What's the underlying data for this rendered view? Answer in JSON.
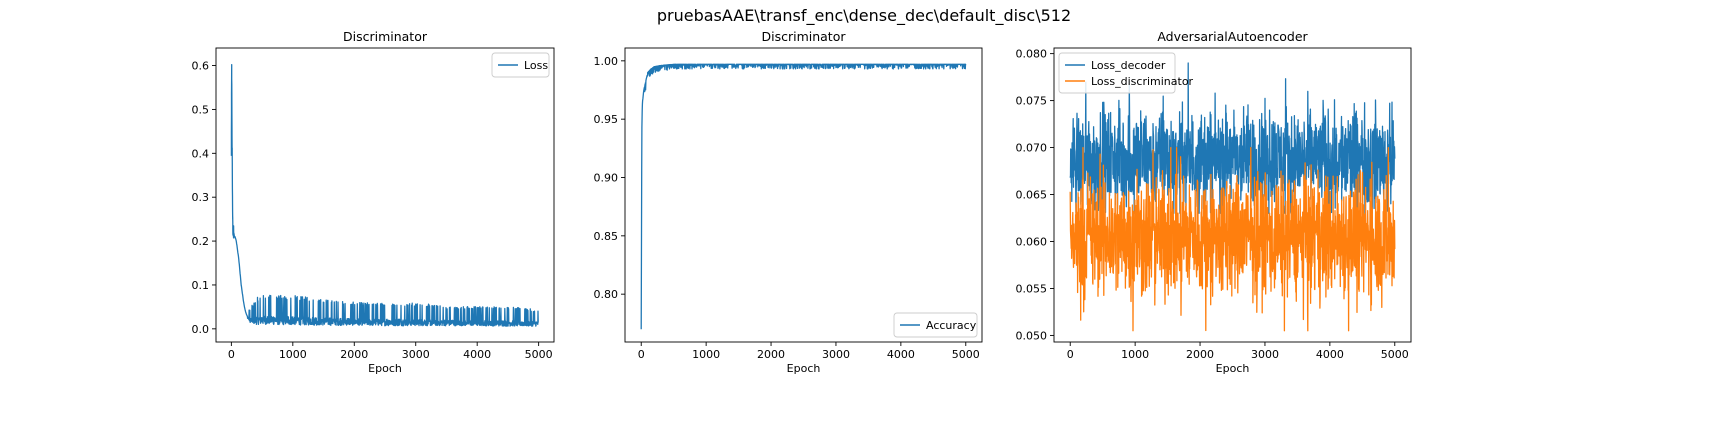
{
  "figure": {
    "suptitle": "pruebasAAE\\transf_enc\\dense_dec\\default_disc\\512"
  },
  "chart_data": [
    {
      "type": "line",
      "title": "Discriminator",
      "xlabel": "Epoch",
      "ylabel": "",
      "xlim": [
        -250,
        5250
      ],
      "ylim": [
        -0.03,
        0.64
      ],
      "xticks": [
        0,
        1000,
        2000,
        3000,
        4000,
        5000
      ],
      "xtick_labels": [
        "0",
        "1000",
        "2000",
        "3000",
        "4000",
        "5000"
      ],
      "yticks": [
        0.0,
        0.1,
        0.2,
        0.3,
        0.4,
        0.5,
        0.6
      ],
      "ytick_labels": [
        "0.0",
        "0.1",
        "0.2",
        "0.3",
        "0.4",
        "0.5",
        "0.6"
      ],
      "legend": "upper right",
      "grid": false,
      "series": [
        {
          "name": "Loss",
          "color": "#1f77b4",
          "x": [
            0,
            5,
            10,
            15,
            20,
            25,
            30,
            40,
            50,
            60,
            80,
            100,
            120,
            140,
            160,
            180,
            200,
            220,
            240,
            260,
            280,
            300,
            350,
            400,
            500,
            600,
            800,
            1000,
            1500,
            2000,
            2500,
            3000,
            3500,
            4000,
            4500,
            5000
          ],
          "values": [
            0.4,
            0.61,
            0.45,
            0.38,
            0.26,
            0.23,
            0.22,
            0.22,
            0.21,
            0.21,
            0.2,
            0.18,
            0.16,
            0.13,
            0.1,
            0.08,
            0.06,
            0.045,
            0.035,
            0.025,
            0.02,
            0.015,
            0.012,
            0.01,
            0.01,
            0.01,
            0.009,
            0.009,
            0.008,
            0.008,
            0.007,
            0.007,
            0.007,
            0.007,
            0.006,
            0.006
          ],
          "noise_envelope": [
            0,
            0,
            0,
            0,
            0,
            0,
            0,
            0,
            0,
            0,
            0,
            0,
            0,
            0,
            0,
            0,
            0,
            0,
            0,
            0.01,
            0.015,
            0.02,
            0.03,
            0.04,
            0.045,
            0.045,
            0.045,
            0.045,
            0.04,
            0.035,
            0.035,
            0.035,
            0.03,
            0.03,
            0.03,
            0.025
          ]
        }
      ]
    },
    {
      "type": "line",
      "title": "Discriminator",
      "xlabel": "Epoch",
      "ylabel": "",
      "xlim": [
        -250,
        5250
      ],
      "ylim": [
        0.759,
        1.011
      ],
      "xticks": [
        0,
        1000,
        2000,
        3000,
        4000,
        5000
      ],
      "xtick_labels": [
        "0",
        "1000",
        "2000",
        "3000",
        "4000",
        "5000"
      ],
      "yticks": [
        0.8,
        0.85,
        0.9,
        0.95,
        1.0
      ],
      "ytick_labels": [
        "0.80",
        "0.85",
        "0.90",
        "0.95",
        "1.00"
      ],
      "legend": "lower right",
      "grid": false,
      "series": [
        {
          "name": "Accuracy",
          "color": "#1f77b4",
          "x": [
            0,
            5,
            10,
            15,
            20,
            30,
            40,
            60,
            80,
            100,
            150,
            200,
            300,
            500,
            1000,
            2000,
            3000,
            4000,
            5000
          ],
          "values": [
            0.77,
            0.88,
            0.94,
            0.96,
            0.965,
            0.97,
            0.975,
            0.98,
            0.985,
            0.99,
            0.993,
            0.995,
            0.996,
            0.997,
            0.997,
            0.997,
            0.997,
            0.997,
            0.997
          ],
          "noise_envelope": [
            0,
            0,
            0.01,
            0.01,
            0.01,
            0.01,
            0.01,
            0.008,
            0.008,
            0.007,
            0.006,
            0.005,
            0.005,
            0.004,
            0.004,
            0.004,
            0.004,
            0.004,
            0.004
          ]
        }
      ]
    },
    {
      "type": "line",
      "title": "AdversarialAutoencoder",
      "xlabel": "Epoch",
      "ylabel": "",
      "xlim": [
        -250,
        5250
      ],
      "ylim": [
        0.0493,
        0.0806
      ],
      "xticks": [
        0,
        1000,
        2000,
        3000,
        4000,
        5000
      ],
      "xtick_labels": [
        "0",
        "1000",
        "2000",
        "3000",
        "4000",
        "5000"
      ],
      "yticks": [
        0.05,
        0.055,
        0.06,
        0.065,
        0.07,
        0.075,
        0.08
      ],
      "ytick_labels": [
        "0.050",
        "0.055",
        "0.060",
        "0.065",
        "0.070",
        "0.075",
        "0.080"
      ],
      "legend": "upper left",
      "grid": false,
      "series": [
        {
          "name": "Loss_decoder",
          "color": "#1f77b4",
          "x": [
            0,
            1000,
            2000,
            3000,
            4000,
            5000
          ],
          "values": [
            0.0685,
            0.0688,
            0.0688,
            0.0688,
            0.0688,
            0.0688
          ],
          "band": [
            0.063,
            0.079
          ]
        },
        {
          "name": "Loss_discriminator",
          "color": "#ff7f0e",
          "x": [
            0,
            1000,
            2000,
            3000,
            4000,
            5000
          ],
          "values": [
            0.0605,
            0.0605,
            0.0605,
            0.0605,
            0.0605,
            0.0605
          ],
          "band": [
            0.0505,
            0.07
          ]
        }
      ]
    }
  ]
}
